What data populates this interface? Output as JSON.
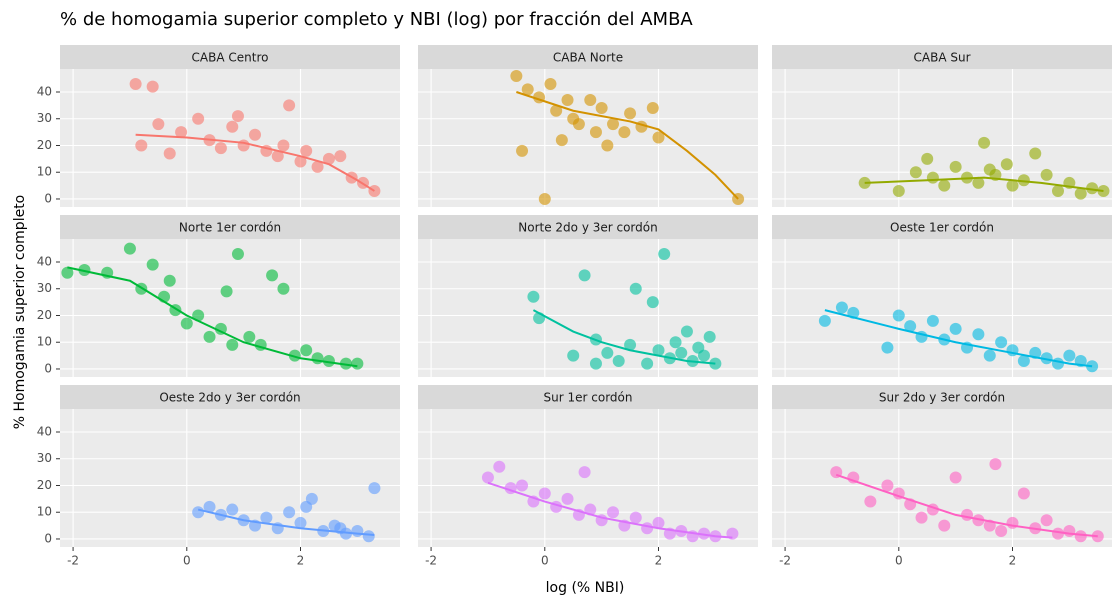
{
  "chart_data": {
    "type": "facet-scatter",
    "title": "% de homogamia superior completo y NBI (log) por fracción del AMBA",
    "xlabel": "log (% NBI)",
    "ylabel": "% Homogamia superior completo",
    "xlim": [
      -2.23,
      3.75
    ],
    "ylim": [
      -3,
      48.6
    ],
    "xticks": [
      -2,
      0,
      2
    ],
    "yticks": [
      0,
      10,
      20,
      30,
      40
    ],
    "grid": true,
    "panels": [
      {
        "type": "scatter",
        "title": "CABA Centro",
        "color": "#F8766D",
        "x": [
          -0.9,
          -0.8,
          -0.5,
          -0.3,
          -0.1,
          0.2,
          0.4,
          0.6,
          0.8,
          0.9,
          1.0,
          1.2,
          1.4,
          1.6,
          1.8,
          2.0,
          2.1,
          2.3,
          2.5,
          2.7,
          2.9,
          3.1,
          3.3,
          -0.6,
          1.7
        ],
        "y": [
          43,
          20,
          28,
          17,
          25,
          30,
          22,
          19,
          27,
          31,
          20,
          24,
          18,
          16,
          35,
          14,
          18,
          12,
          15,
          16,
          8,
          6,
          3,
          42,
          20
        ],
        "trend": {
          "x": [
            -0.9,
            0,
            1,
            2,
            2.5,
            3,
            3.3
          ],
          "y": [
            24,
            23,
            21,
            16,
            13,
            7,
            3
          ]
        }
      },
      {
        "type": "scatter",
        "title": "CABA Norte",
        "color": "#D39200",
        "x": [
          -0.5,
          -0.3,
          -0.1,
          0.1,
          0.2,
          0.4,
          0.5,
          0.6,
          0.8,
          1.0,
          1.2,
          1.4,
          1.5,
          1.7,
          1.9,
          2.0,
          -0.4,
          0.3,
          0.9,
          1.1,
          3.4,
          0.0
        ],
        "y": [
          46,
          41,
          38,
          43,
          33,
          37,
          30,
          28,
          37,
          34,
          28,
          25,
          32,
          27,
          34,
          23,
          18,
          22,
          25,
          20,
          0,
          0
        ],
        "trend": {
          "x": [
            -0.5,
            0.5,
            1.5,
            2.0,
            2.5,
            3.0,
            3.4
          ],
          "y": [
            40,
            33,
            29,
            26,
            18,
            9,
            0
          ]
        }
      },
      {
        "type": "scatter",
        "title": "CABA Sur",
        "color": "#93AA00",
        "x": [
          -0.6,
          0.0,
          0.3,
          0.5,
          0.8,
          1.0,
          1.2,
          1.4,
          1.5,
          1.7,
          1.9,
          2.0,
          2.2,
          2.4,
          2.6,
          2.8,
          3.0,
          3.2,
          3.4,
          3.6,
          0.6,
          1.6
        ],
        "y": [
          6,
          3,
          10,
          15,
          5,
          12,
          8,
          6,
          21,
          9,
          13,
          5,
          7,
          17,
          9,
          3,
          6,
          2,
          4,
          3,
          8,
          11
        ],
        "trend": {
          "x": [
            -0.6,
            0.5,
            1.5,
            2.5,
            3.6
          ],
          "y": [
            6,
            7,
            8,
            6,
            3
          ]
        }
      },
      {
        "type": "scatter",
        "title": "Norte 1er cordón",
        "color": "#00BA38",
        "x": [
          -2.1,
          -1.8,
          -1.4,
          -1.0,
          -0.8,
          -0.6,
          -0.4,
          -0.3,
          -0.2,
          0.0,
          0.2,
          0.4,
          0.6,
          0.7,
          0.8,
          0.9,
          1.1,
          1.3,
          1.5,
          1.7,
          1.9,
          2.1,
          2.3,
          2.5,
          2.8,
          3.0
        ],
        "y": [
          36,
          37,
          36,
          45,
          30,
          39,
          27,
          33,
          22,
          17,
          20,
          12,
          15,
          29,
          9,
          43,
          12,
          9,
          35,
          30,
          5,
          7,
          4,
          3,
          2,
          2
        ],
        "trend": {
          "x": [
            -2.1,
            -1,
            0,
            1,
            2,
            3
          ],
          "y": [
            38,
            33,
            20,
            10,
            4,
            1
          ]
        }
      },
      {
        "type": "scatter",
        "title": "Norte 2do y 3er cordón",
        "color": "#00C19F",
        "x": [
          -0.2,
          -0.1,
          0.5,
          0.7,
          0.9,
          1.1,
          1.3,
          1.5,
          1.6,
          1.8,
          2.0,
          2.1,
          2.2,
          2.3,
          2.4,
          2.5,
          2.6,
          2.7,
          2.8,
          2.9,
          3.0,
          0.9,
          1.9
        ],
        "y": [
          27,
          19,
          5,
          35,
          2,
          6,
          3,
          9,
          30,
          2,
          7,
          43,
          4,
          10,
          6,
          14,
          3,
          8,
          5,
          12,
          2,
          11,
          25
        ],
        "trend": {
          "x": [
            -0.2,
            0.5,
            1,
            1.5,
            2,
            2.5,
            3
          ],
          "y": [
            22,
            14,
            10,
            7,
            5,
            3,
            2
          ]
        }
      },
      {
        "type": "scatter",
        "title": "Oeste 1er cordón",
        "color": "#00B9E3",
        "x": [
          -1.3,
          -1.0,
          -0.8,
          -0.2,
          0.0,
          0.2,
          0.4,
          0.6,
          0.8,
          1.0,
          1.2,
          1.4,
          1.6,
          1.8,
          2.0,
          2.2,
          2.4,
          2.6,
          2.8,
          3.0,
          3.2,
          3.4
        ],
        "y": [
          18,
          23,
          21,
          8,
          20,
          16,
          12,
          18,
          11,
          15,
          8,
          13,
          5,
          10,
          7,
          3,
          6,
          4,
          2,
          5,
          3,
          1
        ],
        "trend": {
          "x": [
            -1.3,
            0,
            1,
            2,
            3,
            3.4
          ],
          "y": [
            22,
            15,
            10,
            6,
            2,
            1
          ]
        }
      },
      {
        "type": "scatter",
        "title": "Oeste 2do y 3er cordón",
        "color": "#619CFF",
        "x": [
          0.2,
          0.4,
          0.6,
          0.8,
          1.0,
          1.2,
          1.4,
          1.6,
          1.8,
          2.0,
          2.2,
          2.4,
          2.6,
          2.8,
          3.0,
          3.2,
          3.3,
          2.1,
          2.7
        ],
        "y": [
          10,
          12,
          9,
          11,
          7,
          5,
          8,
          4,
          10,
          6,
          15,
          3,
          5,
          2,
          3,
          1,
          19,
          12,
          4
        ],
        "trend": {
          "x": [
            0.2,
            1,
            2,
            3,
            3.3
          ],
          "y": [
            11,
            7,
            4,
            2,
            1.5
          ]
        }
      },
      {
        "type": "scatter",
        "title": "Sur 1er cordón",
        "color": "#DB72FB",
        "x": [
          -1.0,
          -0.8,
          -0.6,
          -0.4,
          -0.2,
          0.0,
          0.2,
          0.4,
          0.6,
          0.7,
          0.8,
          1.0,
          1.2,
          1.4,
          1.6,
          1.8,
          2.0,
          2.2,
          2.4,
          2.6,
          2.8,
          3.0,
          3.3
        ],
        "y": [
          23,
          27,
          19,
          20,
          14,
          17,
          12,
          15,
          9,
          25,
          11,
          7,
          10,
          5,
          8,
          4,
          6,
          2,
          3,
          1,
          2,
          1,
          2
        ],
        "trend": {
          "x": [
            -1,
            0,
            1,
            2,
            3,
            3.3
          ],
          "y": [
            21,
            14,
            8,
            4,
            1,
            0.5
          ]
        }
      },
      {
        "type": "scatter",
        "title": "Sur 2do y 3er cordón",
        "color": "#FF61C3",
        "x": [
          -1.1,
          -0.8,
          -0.5,
          -0.2,
          0.0,
          0.2,
          0.4,
          0.6,
          0.8,
          1.0,
          1.2,
          1.4,
          1.6,
          1.7,
          1.8,
          2.0,
          2.2,
          2.4,
          2.6,
          2.8,
          3.0,
          3.2,
          3.5
        ],
        "y": [
          25,
          23,
          14,
          20,
          17,
          13,
          8,
          11,
          5,
          23,
          9,
          7,
          5,
          28,
          3,
          6,
          17,
          4,
          7,
          2,
          3,
          1,
          1
        ],
        "trend": {
          "x": [
            -1.1,
            0,
            1,
            2,
            3,
            3.5
          ],
          "y": [
            24,
            16,
            9,
            5,
            2,
            1
          ]
        }
      }
    ]
  }
}
